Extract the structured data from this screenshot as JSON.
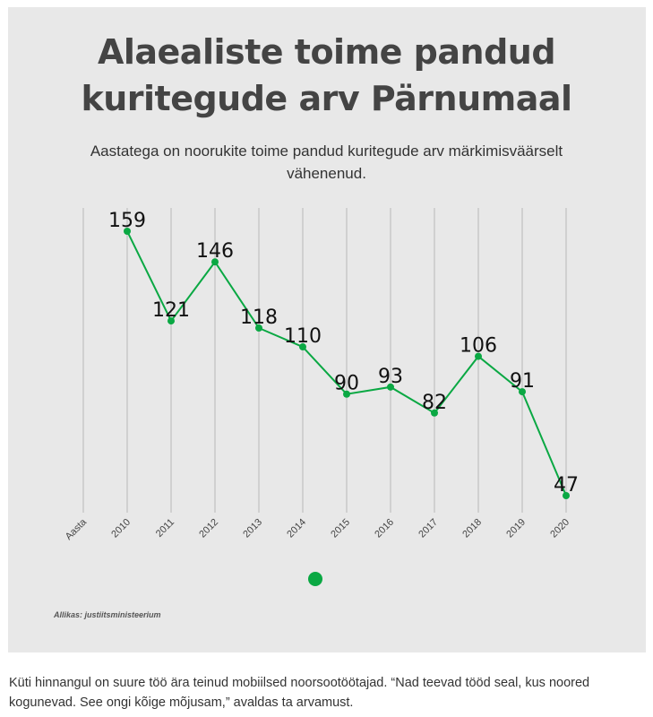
{
  "chart_data": {
    "type": "line",
    "title": "Alaealiste toime pandud kuritegude arv Pärnumaal",
    "subtitle": "Aastatega on noorukite toime pandud kuritegude arv märkimisväärselt vähenenud.",
    "axis_first_label": "Aasta",
    "categories": [
      "2010",
      "2011",
      "2012",
      "2013",
      "2014",
      "2015",
      "2016",
      "2017",
      "2018",
      "2019",
      "2020"
    ],
    "values": [
      159,
      121,
      146,
      118,
      110,
      90,
      93,
      82,
      106,
      91,
      47
    ],
    "color": "#0aa843",
    "grid": "vertical",
    "legend_color": "#0aa843"
  },
  "source": "Allikas: justiitsministeerium",
  "paragraph": "Küti hinnangul on suure töö ära teinud mobiilsed noorsootöötajad. “Nad teevad tööd seal, kus noored kogunevad. See ongi kõige mõjusam,” avaldas ta arvamust."
}
